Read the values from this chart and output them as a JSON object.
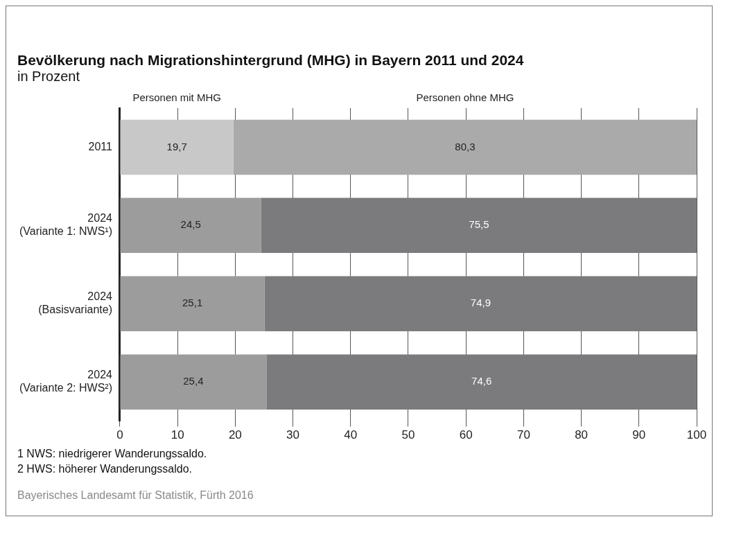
{
  "chart_data": {
    "type": "bar",
    "orientation": "horizontal",
    "stacked": true,
    "title": "Bevölkerung nach Migrationshintergrund (MHG) in Bayern 2011 und 2024",
    "subtitle": "in Prozent",
    "categories": [
      "2011",
      "2024\n(Variante 1: NWS¹)",
      "2024\n(Basisvariante)",
      "2024\n(Variante 2: HWS²)"
    ],
    "series": [
      {
        "name": "Personen mit MHG",
        "colors": [
          "#c8c8c8",
          "#9c9c9c",
          "#9c9c9c",
          "#9c9c9c"
        ],
        "values": [
          19.7,
          24.5,
          25.1,
          25.4
        ],
        "value_labels": [
          "19,7",
          "24,5",
          "25,1",
          "25,4"
        ]
      },
      {
        "name": "Personen ohne MHG",
        "colors": [
          "#aaaaaa",
          "#7b7b7d",
          "#7b7b7d",
          "#7b7b7d"
        ],
        "values": [
          80.3,
          75.5,
          74.9,
          74.6
        ],
        "value_labels": [
          "80,3",
          "75,5",
          "74,9",
          "74,6"
        ]
      }
    ],
    "xlim": [
      0,
      100
    ],
    "xticks": [
      0,
      10,
      20,
      30,
      40,
      50,
      60,
      70,
      80,
      90,
      100
    ],
    "grid": "x",
    "annotations": [
      "1  NWS: niedrigerer Wanderungssaldo.",
      "2  HWS: höherer Wanderungssaldo.",
      "Bayerisches Landesamt für Statistik, Fürth 2016"
    ]
  }
}
